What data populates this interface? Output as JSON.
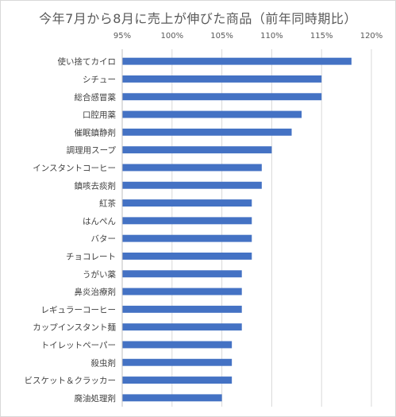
{
  "chart_data": {
    "type": "bar",
    "orientation": "horizontal",
    "title": "今年7月から8月に売上が伸びた商品（前年同時期比）",
    "xlabel": "",
    "ylabel": "",
    "xlim": [
      95,
      120
    ],
    "x_ticks": [
      95,
      100,
      105,
      110,
      115,
      120
    ],
    "tick_suffix": "%",
    "x_axis_position": "top",
    "gridlines": true,
    "legend": "none",
    "bar_color": "#4472c4",
    "categories": [
      "使い捨てカイロ",
      "シチュー",
      "総合感冒薬",
      "口腔用薬",
      "催眠鎮静剤",
      "調理用スープ",
      "インスタントコーヒー",
      "鎮咳去痰剤",
      "紅茶",
      "はんぺん",
      "バター",
      "チョコレート",
      "うがい薬",
      "鼻炎治療剤",
      "レギュラーコーヒー",
      "カップインスタント麺",
      "トイレットペーパー",
      "殺虫剤",
      "ビスケット＆クラッカー",
      "廃油処理剤"
    ],
    "values": [
      118,
      115,
      115,
      113,
      112,
      110,
      109,
      109,
      108,
      108,
      108,
      108,
      107,
      107,
      107,
      107,
      106,
      106,
      106,
      105
    ]
  }
}
